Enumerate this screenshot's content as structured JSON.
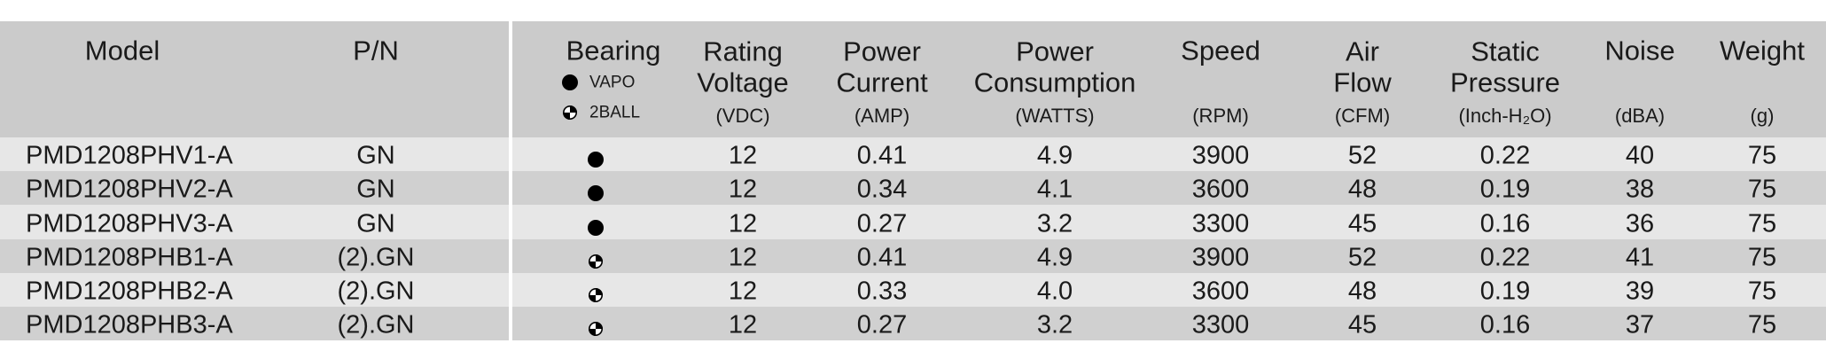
{
  "columns": [
    {
      "title": [
        "Model"
      ]
    },
    {
      "title": [
        "P/N"
      ]
    },
    {
      "title": [
        "Bearing"
      ]
    },
    {
      "title": [
        "Rating",
        "Voltage"
      ],
      "unit": "(VDC)"
    },
    {
      "title": [
        "Power",
        "Current"
      ],
      "unit": "(AMP)"
    },
    {
      "title": [
        "Power",
        "Consumption"
      ],
      "unit": "(WATTS)"
    },
    {
      "title": [
        "Speed"
      ],
      "unit": "(RPM)"
    },
    {
      "title": [
        "Air",
        "Flow"
      ],
      "unit": "(CFM)"
    },
    {
      "title": [
        "Static",
        "Pressure"
      ],
      "unit": "(Inch-H₂O)"
    },
    {
      "title": [
        "Noise"
      ],
      "unit": "(dBA)"
    },
    {
      "title": [
        "Weight"
      ],
      "unit": "(g)"
    }
  ],
  "bearing_legend": [
    "VAPO",
    "2BALL"
  ],
  "rows": [
    {
      "model": "PMD1208PHV1-A",
      "pn": "GN",
      "bearing": "VAPO",
      "values": [
        "12",
        "0.41",
        "4.9",
        "3900",
        "52",
        "0.22",
        "40",
        "75"
      ]
    },
    {
      "model": "PMD1208PHV2-A",
      "pn": "GN",
      "bearing": "VAPO",
      "values": [
        "12",
        "0.34",
        "4.1",
        "3600",
        "48",
        "0.19",
        "38",
        "75"
      ]
    },
    {
      "model": "PMD1208PHV3-A",
      "pn": "GN",
      "bearing": "VAPO",
      "values": [
        "12",
        "0.27",
        "3.2",
        "3300",
        "45",
        "0.16",
        "36",
        "75"
      ]
    },
    {
      "model": "PMD1208PHB1-A",
      "pn": "(2).GN",
      "bearing": "2BALL",
      "values": [
        "12",
        "0.41",
        "4.9",
        "3900",
        "52",
        "0.22",
        "41",
        "75"
      ]
    },
    {
      "model": "PMD1208PHB2-A",
      "pn": "(2).GN",
      "bearing": "2BALL",
      "values": [
        "12",
        "0.33",
        "4.0",
        "3600",
        "48",
        "0.19",
        "39",
        "75"
      ]
    },
    {
      "model": "PMD1208PHB3-A",
      "pn": "(2).GN",
      "bearing": "2BALL",
      "values": [
        "12",
        "0.27",
        "3.2",
        "3300",
        "45",
        "0.16",
        "37",
        "75"
      ]
    }
  ]
}
